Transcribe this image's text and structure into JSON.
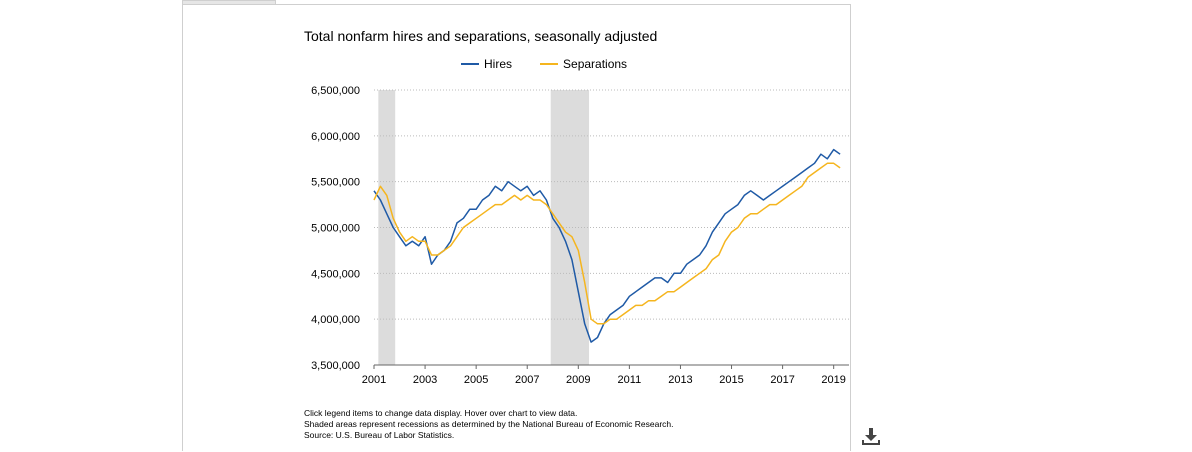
{
  "chart_data": {
    "type": "line",
    "title": "Total nonfarm hires and separations, seasonally adjusted",
    "xlabel": "",
    "ylabel": "",
    "xlim": [
      2001,
      2019.6
    ],
    "ylim": [
      3500000,
      6500000
    ],
    "x_ticks": [
      "2001",
      "2003",
      "2005",
      "2007",
      "2009",
      "2011",
      "2013",
      "2015",
      "2017",
      "2019"
    ],
    "y_ticks": [
      "6,500,000",
      "6,000,000",
      "5,500,000",
      "5,000,000",
      "4,500,000",
      "4,000,000",
      "3,500,000"
    ],
    "legend_position": "top-center",
    "grid": true,
    "recessions": [
      [
        2001.17,
        2001.83
      ],
      [
        2007.92,
        2009.42
      ]
    ],
    "series": [
      {
        "name": "Hires",
        "color": "#1f5aa6",
        "x": [
          2001.0,
          2001.25,
          2001.5,
          2001.75,
          2002.0,
          2002.25,
          2002.5,
          2002.75,
          2003.0,
          2003.25,
          2003.5,
          2003.75,
          2004.0,
          2004.25,
          2004.5,
          2004.75,
          2005.0,
          2005.25,
          2005.5,
          2005.75,
          2006.0,
          2006.25,
          2006.5,
          2006.75,
          2007.0,
          2007.25,
          2007.5,
          2007.75,
          2008.0,
          2008.25,
          2008.5,
          2008.75,
          2009.0,
          2009.25,
          2009.5,
          2009.75,
          2010.0,
          2010.25,
          2010.5,
          2010.75,
          2011.0,
          2011.25,
          2011.5,
          2011.75,
          2012.0,
          2012.25,
          2012.5,
          2012.75,
          2013.0,
          2013.25,
          2013.5,
          2013.75,
          2014.0,
          2014.25,
          2014.5,
          2014.75,
          2015.0,
          2015.25,
          2015.5,
          2015.75,
          2016.0,
          2016.25,
          2016.5,
          2016.75,
          2017.0,
          2017.25,
          2017.5,
          2017.75,
          2018.0,
          2018.25,
          2018.5,
          2018.75,
          2019.0,
          2019.25
        ],
        "values": [
          5400000,
          5300000,
          5150000,
          5000000,
          4900000,
          4800000,
          4850000,
          4800000,
          4900000,
          4600000,
          4700000,
          4750000,
          4850000,
          5050000,
          5100000,
          5200000,
          5200000,
          5300000,
          5350000,
          5450000,
          5400000,
          5500000,
          5450000,
          5400000,
          5450000,
          5350000,
          5400000,
          5300000,
          5100000,
          5000000,
          4850000,
          4650000,
          4300000,
          3950000,
          3750000,
          3800000,
          3950000,
          4050000,
          4100000,
          4150000,
          4250000,
          4300000,
          4350000,
          4400000,
          4450000,
          4450000,
          4400000,
          4500000,
          4500000,
          4600000,
          4650000,
          4700000,
          4800000,
          4950000,
          5050000,
          5150000,
          5200000,
          5250000,
          5350000,
          5400000,
          5350000,
          5300000,
          5350000,
          5400000,
          5450000,
          5500000,
          5550000,
          5600000,
          5650000,
          5700000,
          5800000,
          5750000,
          5850000,
          5800000
        ]
      },
      {
        "name": "Separations",
        "color": "#f5b51e",
        "x": [
          2001.0,
          2001.25,
          2001.5,
          2001.75,
          2002.0,
          2002.25,
          2002.5,
          2002.75,
          2003.0,
          2003.25,
          2003.5,
          2003.75,
          2004.0,
          2004.25,
          2004.5,
          2004.75,
          2005.0,
          2005.25,
          2005.5,
          2005.75,
          2006.0,
          2006.25,
          2006.5,
          2006.75,
          2007.0,
          2007.25,
          2007.5,
          2007.75,
          2008.0,
          2008.25,
          2008.5,
          2008.75,
          2009.0,
          2009.25,
          2009.5,
          2009.75,
          2010.0,
          2010.25,
          2010.5,
          2010.75,
          2011.0,
          2011.25,
          2011.5,
          2011.75,
          2012.0,
          2012.25,
          2012.5,
          2012.75,
          2013.0,
          2013.25,
          2013.5,
          2013.75,
          2014.0,
          2014.25,
          2014.5,
          2014.75,
          2015.0,
          2015.25,
          2015.5,
          2015.75,
          2016.0,
          2016.25,
          2016.5,
          2016.75,
          2017.0,
          2017.25,
          2017.5,
          2017.75,
          2018.0,
          2018.25,
          2018.5,
          2018.75,
          2019.0,
          2019.25
        ],
        "values": [
          5300000,
          5450000,
          5350000,
          5100000,
          4950000,
          4850000,
          4900000,
          4850000,
          4850000,
          4700000,
          4700000,
          4750000,
          4800000,
          4900000,
          5000000,
          5050000,
          5100000,
          5150000,
          5200000,
          5250000,
          5250000,
          5300000,
          5350000,
          5300000,
          5350000,
          5300000,
          5300000,
          5250000,
          5150000,
          5050000,
          4950000,
          4900000,
          4750000,
          4400000,
          4000000,
          3950000,
          3950000,
          4000000,
          4000000,
          4050000,
          4100000,
          4150000,
          4150000,
          4200000,
          4200000,
          4250000,
          4300000,
          4300000,
          4350000,
          4400000,
          4450000,
          4500000,
          4550000,
          4650000,
          4700000,
          4850000,
          4950000,
          5000000,
          5100000,
          5150000,
          5150000,
          5200000,
          5250000,
          5250000,
          5300000,
          5350000,
          5400000,
          5450000,
          5550000,
          5600000,
          5650000,
          5700000,
          5700000,
          5650000
        ]
      }
    ]
  },
  "notes": [
    "Click legend items to change data display. Hover over chart to view data.",
    "Shaded areas represent recessions as determined by the National Bureau of Economic Research.",
    "Source: U.S. Bureau of Labor Statistics."
  ]
}
